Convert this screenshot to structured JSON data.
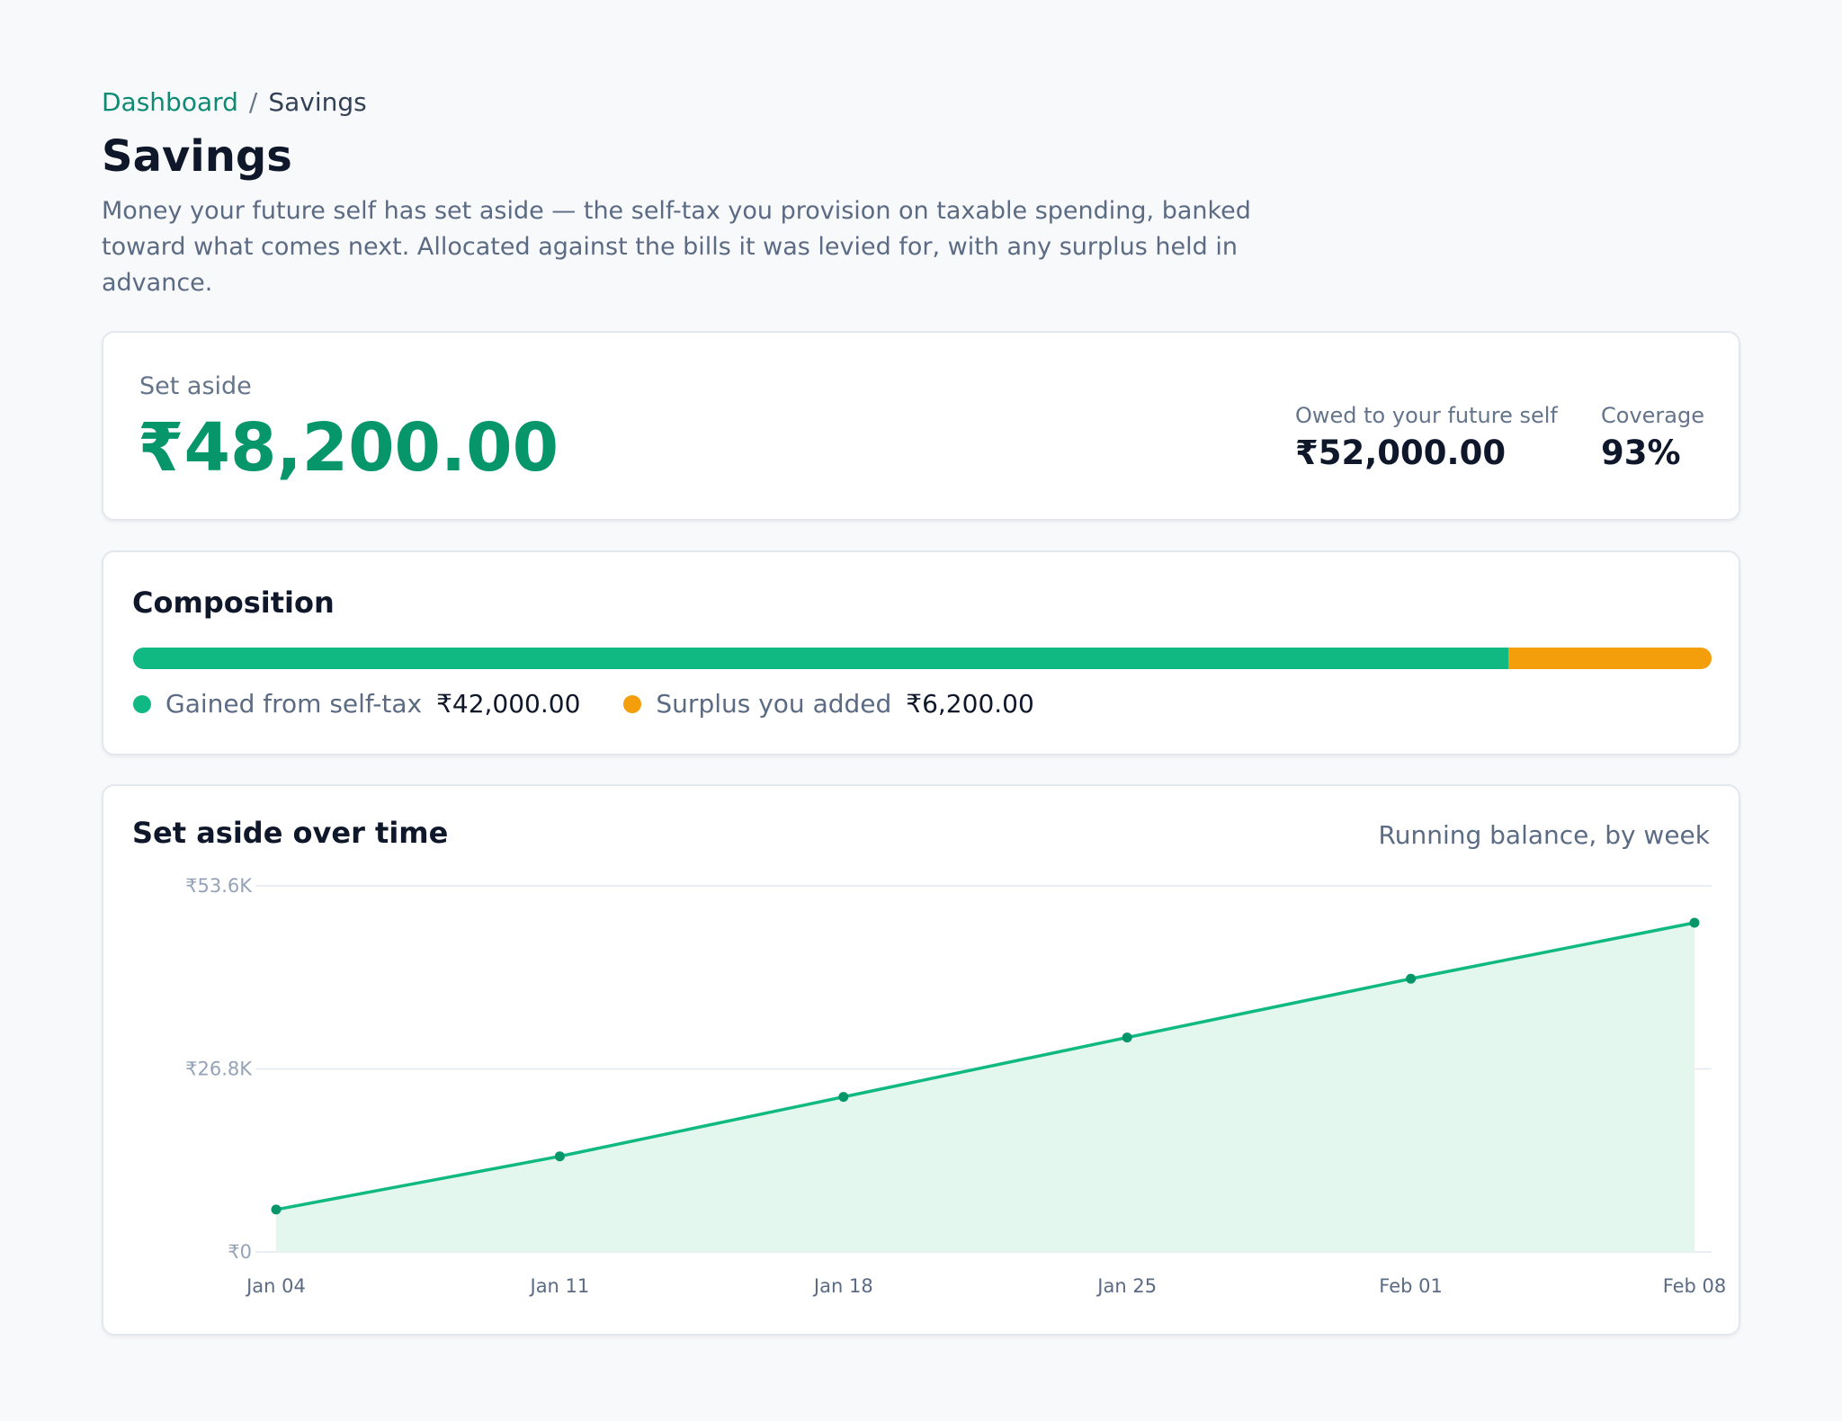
{
  "breadcrumb": {
    "parent": "Dashboard",
    "separator": "/",
    "current": "Savings"
  },
  "page": {
    "title": "Savings",
    "description": "Money your future self has set aside — the self-tax you provision on taxable spending, banked toward what comes next. Allocated against the bills it was levied for, with any surplus held in advance."
  },
  "summary": {
    "set_aside_label": "Set aside",
    "set_aside_value": "₹48,200.00",
    "owed_label": "Owed to your future self",
    "owed_value": "₹52,000.00",
    "coverage_label": "Coverage",
    "coverage_value": "93%"
  },
  "composition": {
    "title": "Composition",
    "segments": [
      {
        "label": "Gained from self-tax",
        "value_text": "₹42,000.00",
        "amount": 42000,
        "color": "#10b981"
      },
      {
        "label": "Surplus you added",
        "value_text": "₹6,200.00",
        "amount": 6200,
        "color": "#f59e0b"
      }
    ]
  },
  "chart": {
    "title": "Set aside over time",
    "subtitle": "Running balance, by week"
  },
  "colors": {
    "accent": "#079669",
    "line": "#10b981",
    "area": "#e3f7ef",
    "point": "#079669"
  },
  "chart_data": {
    "type": "area",
    "x": [
      "Jan 04",
      "Jan 11",
      "Jan 18",
      "Jan 25",
      "Feb 01",
      "Feb 08"
    ],
    "series": [
      {
        "values": [
          6200,
          14000,
          22700,
          31400,
          40000,
          48200
        ]
      }
    ],
    "ylim": [
      0,
      53600
    ],
    "yticks": [
      "₹0",
      "₹26.8K",
      "₹53.6K"
    ],
    "ytick_values": [
      0,
      26800,
      53600
    ],
    "grid": true
  }
}
